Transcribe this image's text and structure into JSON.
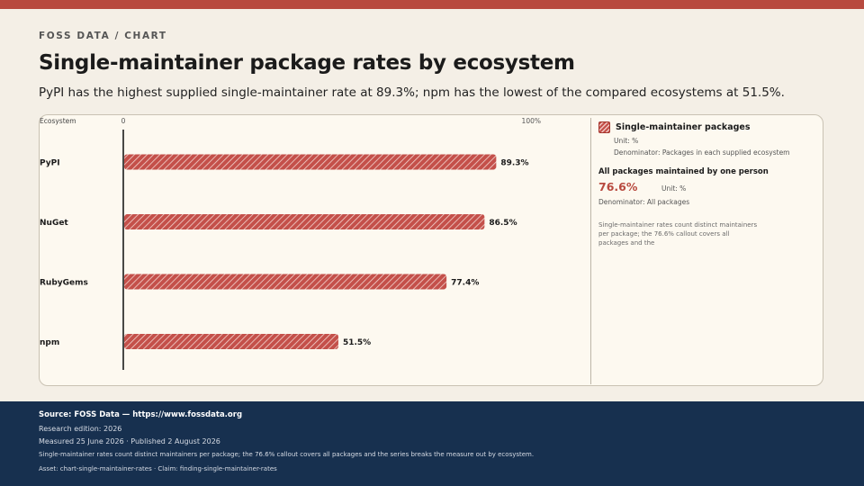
{
  "header": {
    "eyebrow": "FOSS DATA / CHART",
    "title": "Single-maintainer package rates by ecosystem",
    "subtitle": "PyPI has the highest supplied single-maintainer rate at 89.3%; npm has the lowest of the compared ecosystems at 51.5%."
  },
  "chart_data": {
    "type": "bar",
    "orientation": "horizontal",
    "category_header": "Ecosystem",
    "categories": [
      "PyPI",
      "NuGet",
      "RubyGems",
      "npm"
    ],
    "series": [
      {
        "name": "Single-maintainer packages",
        "values": [
          89.3,
          86.5,
          77.4,
          51.5
        ]
      }
    ],
    "value_labels": [
      "89.3%",
      "86.5%",
      "77.4%",
      "51.5%"
    ],
    "axis_tick_labels": [
      "0",
      "100%"
    ],
    "xlim": [
      0,
      100
    ],
    "unit": "%",
    "bar_color": "#c4504a",
    "bar_pattern": "diagonal-hatch",
    "grid": false,
    "legend_position": "right"
  },
  "legend": {
    "series_name": "Single-maintainer packages",
    "unit": "Unit: %",
    "denominator": "Denominator: Packages in each supplied ecosystem",
    "callout_label": "All packages maintained by one person",
    "callout_value": "76.6%",
    "callout_unit": "Unit: %",
    "callout_denominator": "Denominator: All packages",
    "note": "Single-maintainer rates count distinct maintainers per package; the 76.6% callout covers all packages and the"
  },
  "footer": {
    "source": "Source: FOSS Data — https://www.fossdata.org",
    "edition": "Research edition: 2026",
    "dates": "Measured 25 June 2026 · Published 2 August 2026",
    "note": "Single-maintainer rates count distinct maintainers per package; the 76.6% callout covers all packages and the series breaks the measure out by ecosystem.",
    "asset": "Asset: chart-single-maintainer-rates · Claim: finding-single-maintainer-rates"
  },
  "colors": {
    "accent": "#b84a3f",
    "background": "#f4efe6",
    "card": "#fdf9f0",
    "footer": "#17304f"
  }
}
